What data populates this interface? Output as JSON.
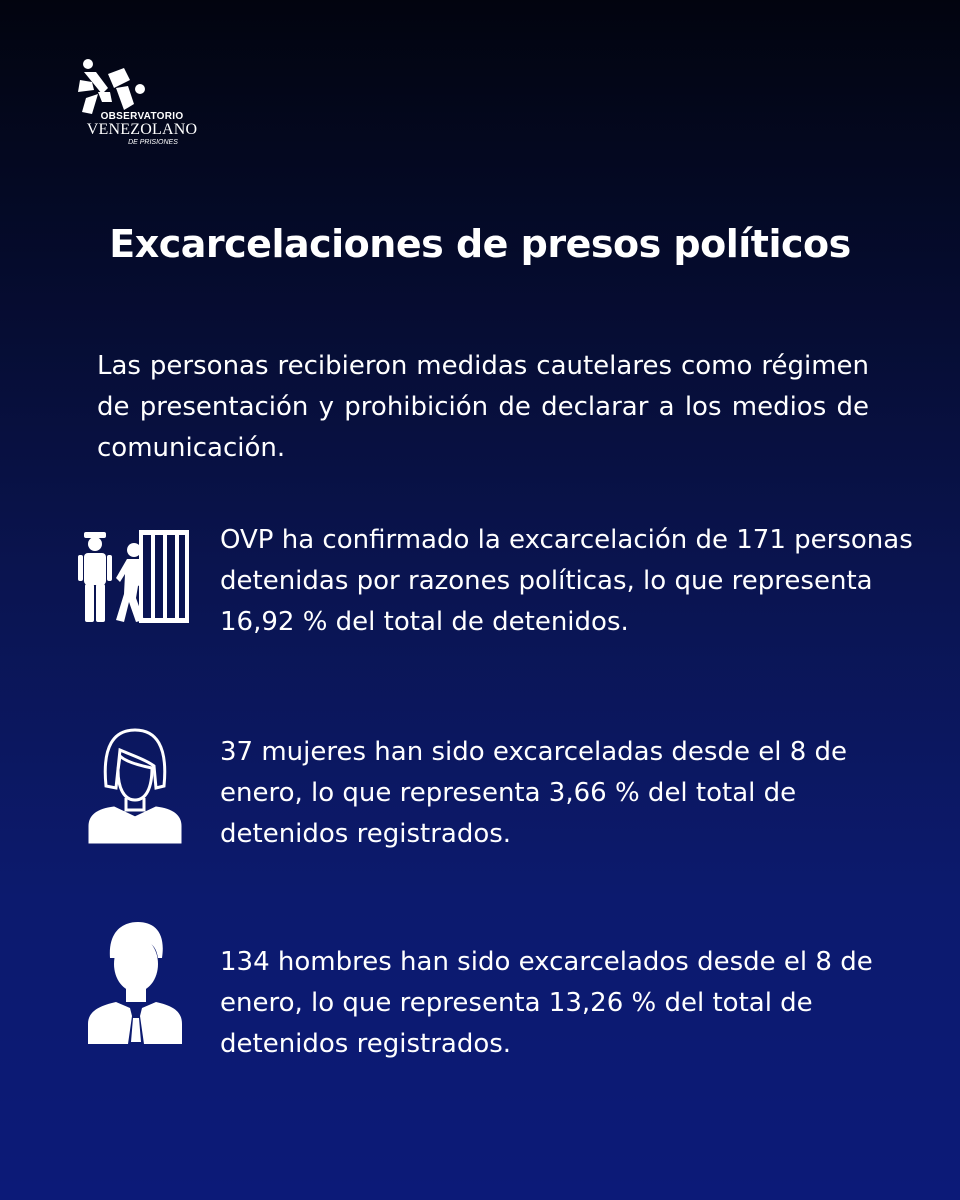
{
  "logo": {
    "line1": "OBSERVATORIO",
    "line2": "VENEZOLANO",
    "line3": "DE PRISIONES"
  },
  "title": "Excarcelaciones de presos políticos",
  "intro": "Las personas recibieron medidas cautelares como régimen de presentación y prohibición de declarar a los medios de comunicación.",
  "stats": [
    {
      "icon": "prisoner-release-icon",
      "text": "OVP ha confirmado la excarcelación de 171 personas detenidas por razones políticas, lo que representa 16,92 % del total de detenidos."
    },
    {
      "icon": "woman-icon",
      "text": "37 mujeres han sido excarceladas desde el 8 de enero, lo que representa 3,66 % del total de detenidos registrados."
    },
    {
      "icon": "man-icon",
      "text": "134 hombres han sido excarcelados desde el 8 de enero, lo que representa 13,26 % del total de detenidos registrados."
    }
  ]
}
